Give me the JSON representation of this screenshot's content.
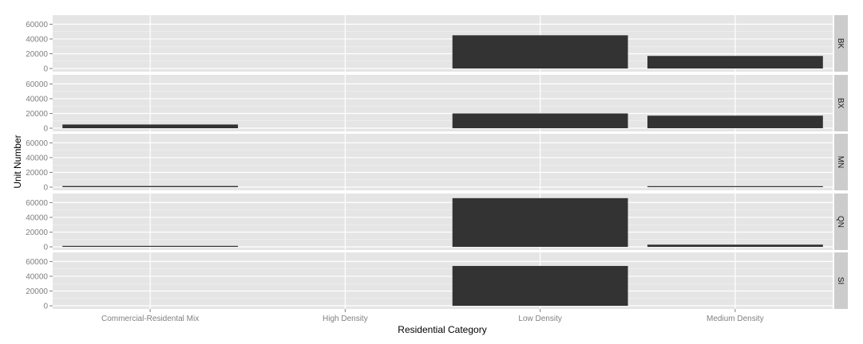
{
  "chart_data": {
    "type": "bar",
    "facet_by": "borough",
    "xlabel": "Residential Category",
    "ylabel": "Unit Number",
    "categories": [
      "Commercial-Residental Mix",
      "High Density",
      "Low Density",
      "Medium Density"
    ],
    "ylim": [
      0,
      68000
    ],
    "yticks": [
      0,
      20000,
      40000,
      60000
    ],
    "ytick_labels": [
      "0",
      "20000",
      "40000",
      "60000"
    ],
    "grid": true,
    "legend": "none",
    "colors": {
      "bar": "#333333",
      "panel": "#e5e5e5",
      "grid_major": "#ffffff",
      "grid_minor": "#f2f2f2",
      "strip": "#cccccc",
      "tick_label": "#808080"
    },
    "facets": [
      {
        "label": "BK",
        "values": [
          0,
          0,
          45000,
          17000
        ]
      },
      {
        "label": "BX",
        "values": [
          5000,
          0,
          20000,
          17000
        ]
      },
      {
        "label": "MN",
        "values": [
          1500,
          0,
          0,
          800
        ]
      },
      {
        "label": "QN",
        "values": [
          1000,
          0,
          66000,
          3000
        ]
      },
      {
        "label": "SI",
        "values": [
          0,
          0,
          54000,
          0
        ]
      }
    ]
  }
}
